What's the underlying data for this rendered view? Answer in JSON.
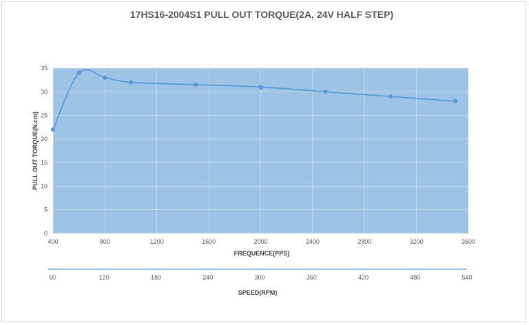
{
  "chart_data": {
    "type": "line",
    "title": "17HS16-2004S1 PULL OUT TORQUE(2A, 24V HALF STEP)",
    "xlabel": "FREQUENCE(PPS)",
    "ylabel": "PULL OUT TORQUE(N.cm)",
    "secondary_xlabel": "SPEED(RPM)",
    "xlim": [
      400,
      3600
    ],
    "ylim": [
      0,
      35
    ],
    "secondary_xlim": [
      60,
      540
    ],
    "x_ticks": [
      "400",
      "800",
      "1200",
      "1600",
      "2000",
      "2400",
      "2800",
      "3200",
      "3600"
    ],
    "y_ticks": [
      "0",
      "5",
      "10",
      "15",
      "20",
      "25",
      "30",
      "35"
    ],
    "secondary_x_ticks": [
      "60",
      "120",
      "180",
      "240",
      "300",
      "360",
      "420",
      "480",
      "540"
    ],
    "grid": true,
    "smooth": true,
    "plot_background": "#9dc3e6",
    "series": [
      {
        "color": "#5b9bd5",
        "x": [
          400,
          600,
          800,
          1000,
          1500,
          2000,
          2500,
          3000,
          3500
        ],
        "y": [
          22,
          34,
          33,
          32,
          31.5,
          31,
          30,
          29,
          28
        ]
      }
    ]
  }
}
